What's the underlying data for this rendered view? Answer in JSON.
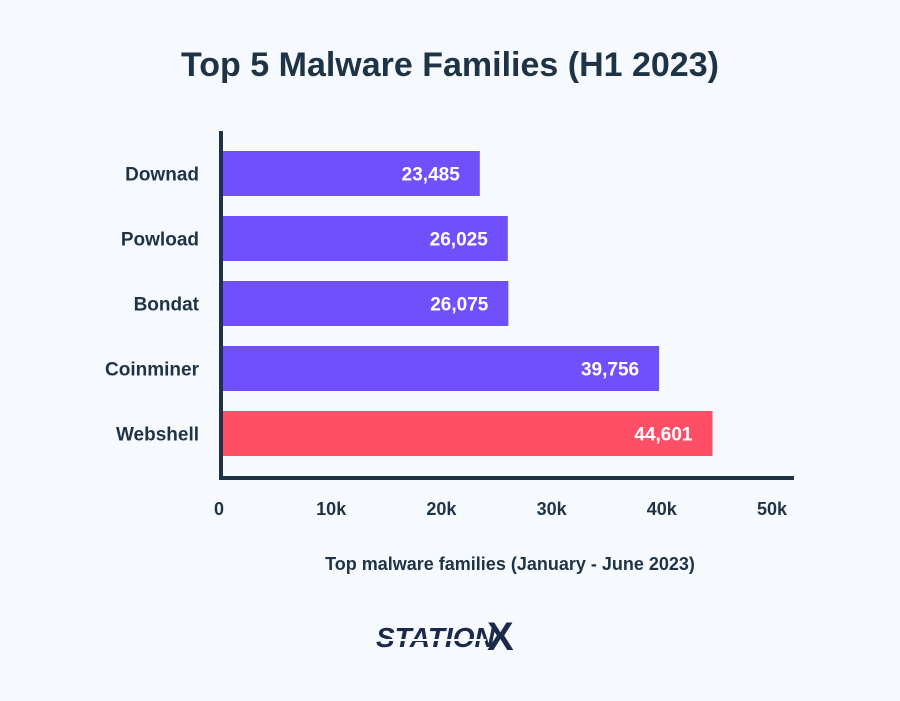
{
  "chart_data": {
    "type": "bar",
    "orientation": "horizontal",
    "title": "Top 5 Malware Families (H1 2023)",
    "xlabel": "Top malware families (January - June 2023)",
    "ylabel": "",
    "categories": [
      "Downad",
      "Powload",
      "Bondat",
      "Coinminer",
      "Webshell"
    ],
    "values": [
      23485,
      26025,
      26075,
      39756,
      44601
    ],
    "value_labels": [
      "23,485",
      "26,025",
      "26,075",
      "39,756",
      "44,601"
    ],
    "xlim": [
      0,
      50000
    ],
    "x_ticks": [
      0,
      10000,
      20000,
      30000,
      40000,
      50000
    ],
    "x_tick_labels": [
      "0",
      "10k",
      "20k",
      "30k",
      "40k",
      "50k"
    ],
    "bar_colors": [
      "#7050fb",
      "#7050fb",
      "#7050fb",
      "#7050fb",
      "#ff4f66"
    ],
    "grid": false,
    "legend": "none"
  },
  "brand": {
    "logo_text": "STATIONX"
  }
}
